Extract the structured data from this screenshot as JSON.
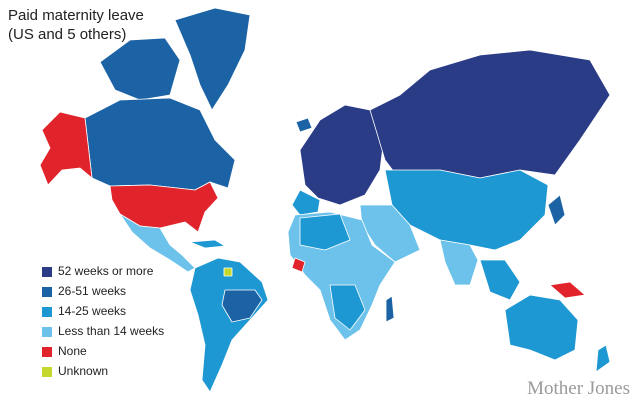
{
  "header": {
    "title": "Paid maternity leave",
    "subtitle": "(US and 5 others)"
  },
  "legend": [
    {
      "label": "52 weeks or more",
      "color": "#2b3c87"
    },
    {
      "label": "26-51 weeks",
      "color": "#1c63a6"
    },
    {
      "label": "14-25 weeks",
      "color": "#1d98d2"
    },
    {
      "label": "Less than 14 weeks",
      "color": "#6cc2ea"
    },
    {
      "label": "None",
      "color": "#e1232b"
    },
    {
      "label": "Unknown",
      "color": "#c6d82e"
    }
  ],
  "footer": {
    "brand": "Mother Jones"
  }
}
